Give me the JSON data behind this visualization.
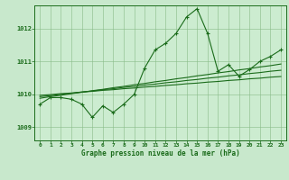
{
  "title": "Graphe pression niveau de la mer (hPa)",
  "background_color": "#c8e8cc",
  "plot_bg_color": "#ccecd0",
  "grid_color": "#88bb88",
  "line_color": "#1a6b1a",
  "tick_color": "#1a6b1a",
  "x_ticks": [
    0,
    1,
    2,
    3,
    4,
    5,
    6,
    7,
    8,
    9,
    10,
    11,
    12,
    13,
    14,
    15,
    16,
    17,
    18,
    19,
    20,
    21,
    22,
    23
  ],
  "ylim": [
    1008.6,
    1012.7
  ],
  "yticks": [
    1009,
    1010,
    1011,
    1012
  ],
  "main_data": [
    1009.7,
    1009.9,
    1009.9,
    1009.85,
    1009.7,
    1009.3,
    1009.65,
    1009.45,
    1009.7,
    1010.0,
    1010.8,
    1011.35,
    1011.55,
    1011.85,
    1012.35,
    1012.6,
    1011.85,
    1010.7,
    1010.9,
    1010.55,
    1010.75,
    1011.0,
    1011.15,
    1011.35
  ],
  "trend_lines": [
    [
      1009.97,
      1009.99,
      1010.02,
      1010.04,
      1010.07,
      1010.09,
      1010.12,
      1010.14,
      1010.17,
      1010.19,
      1010.22,
      1010.24,
      1010.27,
      1010.29,
      1010.32,
      1010.34,
      1010.37,
      1010.39,
      1010.42,
      1010.44,
      1010.47,
      1010.49,
      1010.52,
      1010.54
    ],
    [
      1009.93,
      1009.96,
      1010.0,
      1010.03,
      1010.07,
      1010.1,
      1010.14,
      1010.17,
      1010.21,
      1010.24,
      1010.28,
      1010.31,
      1010.35,
      1010.38,
      1010.42,
      1010.45,
      1010.49,
      1010.52,
      1010.56,
      1010.59,
      1010.63,
      1010.66,
      1010.7,
      1010.73
    ],
    [
      1009.88,
      1009.93,
      1009.97,
      1010.02,
      1010.06,
      1010.11,
      1010.15,
      1010.2,
      1010.24,
      1010.29,
      1010.33,
      1010.38,
      1010.42,
      1010.47,
      1010.51,
      1010.56,
      1010.6,
      1010.65,
      1010.69,
      1010.74,
      1010.78,
      1010.83,
      1010.87,
      1010.92
    ]
  ],
  "figsize": [
    3.2,
    2.0
  ],
  "dpi": 100
}
